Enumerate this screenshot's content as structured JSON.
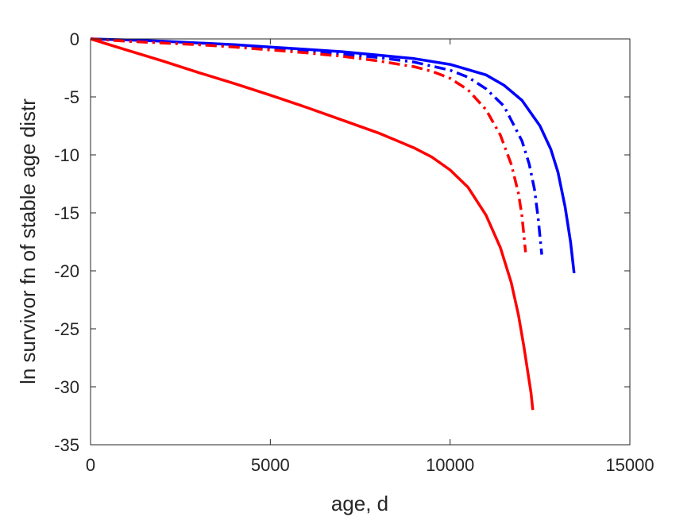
{
  "chart_data": {
    "type": "line",
    "title": "",
    "xlabel": "age, d",
    "ylabel": "ln survivor fn of stable age distr",
    "xlim": [
      0,
      15000
    ],
    "ylim": [
      -35,
      0
    ],
    "xticks": [
      0,
      5000,
      10000,
      15000
    ],
    "yticks": [
      0,
      -5,
      -10,
      -15,
      -20,
      -25,
      -30,
      -35
    ],
    "xtick_labels": [
      "0",
      "5000",
      "10000",
      "15000"
    ],
    "ytick_labels": [
      "0",
      "-5",
      "-10",
      "-15",
      "-20",
      "-25",
      "-30",
      "-35"
    ],
    "grid": false,
    "legend": "none",
    "series": [
      {
        "color": "#0000ff",
        "style": "solid",
        "x": [
          0,
          1000,
          2000,
          3000,
          4000,
          5000,
          6000,
          7000,
          8000,
          9000,
          10000,
          11000,
          11500,
          12000,
          12500,
          12800,
          13000,
          13200,
          13350,
          13450
        ],
        "y": [
          0,
          -0.08,
          -0.2,
          -0.35,
          -0.5,
          -0.7,
          -0.9,
          -1.1,
          -1.4,
          -1.7,
          -2.2,
          -3.1,
          -4.0,
          -5.3,
          -7.5,
          -9.5,
          -11.5,
          -14.5,
          -17.5,
          -20.2
        ]
      },
      {
        "color": "#0000ff",
        "style": "dashdot",
        "x": [
          0,
          1000,
          2000,
          3000,
          4000,
          5000,
          6000,
          7000,
          8000,
          9000,
          10000,
          10500,
          11000,
          11500,
          12000,
          12200,
          12350,
          12450,
          12550
        ],
        "y": [
          0,
          -0.15,
          -0.3,
          -0.45,
          -0.6,
          -0.8,
          -1.05,
          -1.3,
          -1.6,
          -2.0,
          -2.7,
          -3.3,
          -4.3,
          -5.8,
          -8.8,
          -10.8,
          -13.0,
          -15.5,
          -18.6
        ]
      },
      {
        "color": "#ff0000",
        "style": "dashdot",
        "x": [
          0,
          1000,
          2000,
          3000,
          4000,
          5000,
          6000,
          7000,
          8000,
          9000,
          9500,
          10000,
          10500,
          11000,
          11400,
          11700,
          11900,
          12000,
          12100
        ],
        "y": [
          0,
          -0.2,
          -0.35,
          -0.5,
          -0.7,
          -0.95,
          -1.2,
          -1.5,
          -1.9,
          -2.4,
          -2.8,
          -3.4,
          -4.4,
          -6.1,
          -8.3,
          -10.8,
          -13.3,
          -15.3,
          -18.4
        ]
      },
      {
        "color": "#ff0000",
        "style": "solid",
        "x": [
          0,
          1000,
          2000,
          3000,
          4000,
          5000,
          6000,
          7000,
          8000,
          9000,
          9500,
          10000,
          10500,
          11000,
          11400,
          11700,
          11900,
          12050,
          12150,
          12250,
          12300
        ],
        "y": [
          0,
          -0.95,
          -1.9,
          -2.9,
          -3.85,
          -4.85,
          -5.9,
          -7.0,
          -8.1,
          -9.4,
          -10.2,
          -11.3,
          -12.8,
          -15.2,
          -18.0,
          -21.0,
          -23.8,
          -26.5,
          -28.5,
          -30.5,
          -32.0
        ]
      }
    ]
  }
}
